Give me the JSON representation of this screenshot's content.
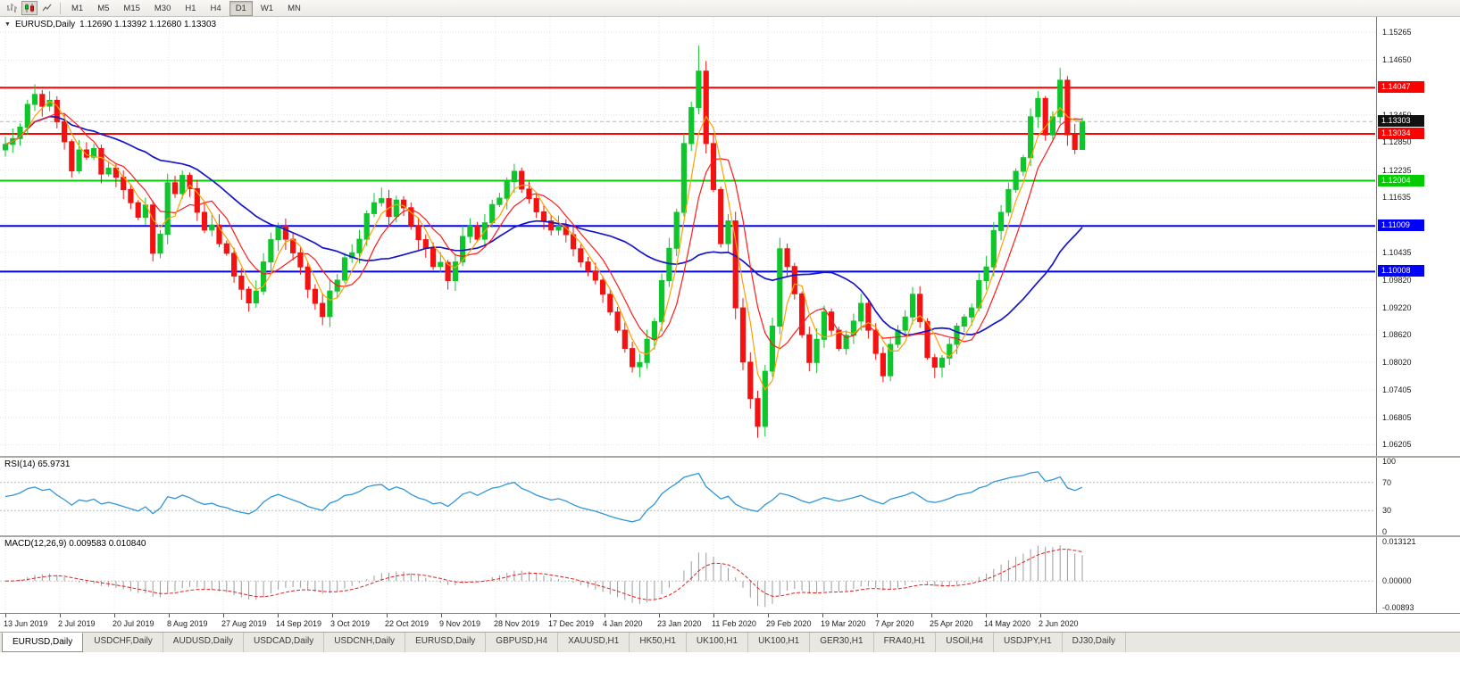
{
  "toolbar": {
    "timeframes": [
      "M1",
      "M5",
      "M15",
      "M30",
      "H1",
      "H4",
      "D1",
      "W1",
      "MN"
    ],
    "active_timeframe": "D1",
    "chart_type_icons": [
      "bar-chart-icon",
      "candlestick-chart-icon",
      "line-chart-icon"
    ],
    "active_chart_type": "candlestick-chart-icon"
  },
  "chart": {
    "symbol_label": "EURUSD,Daily",
    "ohlc_text": "1.12690 1.13392 1.12680 1.13303"
  },
  "chart_data": {
    "type": "candlestick",
    "symbol": "EURUSD",
    "timeframe": "Daily",
    "price_axis": {
      "top": 1.156,
      "bottom": 1.0596,
      "ticks": [
        1.15265,
        1.1465,
        1.1345,
        1.1285,
        1.12235,
        1.11635,
        1.10435,
        1.0982,
        1.0922,
        1.0862,
        1.0802,
        1.07405,
        1.06805,
        1.06205
      ]
    },
    "levels": [
      {
        "price": 1.14047,
        "label": "1.14047",
        "color": "#ff0000"
      },
      {
        "price": 1.13034,
        "label": "1.13034",
        "color": "#ff0000"
      },
      {
        "price": 1.12004,
        "label": "1.12004",
        "color": "#00cc00"
      },
      {
        "price": 1.11009,
        "label": "1.11009",
        "color": "#0000ff"
      },
      {
        "price": 1.10008,
        "label": "1.10008",
        "color": "#0000ff"
      }
    ],
    "current_price": {
      "value": 1.13303,
      "label": "1.13303",
      "box_color": "#111111"
    },
    "closes": [
      1.128,
      1.1293,
      1.1318,
      1.1368,
      1.139,
      1.1364,
      1.1377,
      1.133,
      1.1286,
      1.1222,
      1.1268,
      1.1252,
      1.1271,
      1.1215,
      1.1228,
      1.1208,
      1.1181,
      1.1152,
      1.112,
      1.1147,
      1.1041,
      1.1083,
      1.1196,
      1.1172,
      1.1212,
      1.1183,
      1.1131,
      1.1092,
      1.1103,
      1.1062,
      1.1041,
      1.0991,
      1.0962,
      1.0932,
      1.0958,
      1.1022,
      1.1071,
      1.1101,
      1.1072,
      1.1042,
      1.1011,
      1.0962,
      1.0931,
      1.0902,
      1.0958,
      1.0982,
      1.1031,
      1.1042,
      1.1072,
      1.1128,
      1.1152,
      1.1161,
      1.1122,
      1.1158,
      1.1141,
      1.1102,
      1.1071,
      1.1052,
      1.1012,
      1.1021,
      1.0981,
      1.1022,
      1.1078,
      1.1101,
      1.1072,
      1.1108,
      1.1148,
      1.1162,
      1.1198,
      1.1221,
      1.1182,
      1.1161,
      1.1132,
      1.1112,
      1.1092,
      1.1101,
      1.1082,
      1.1051,
      1.1022,
      1.1002,
      1.0982,
      1.0951,
      1.0912,
      1.0872,
      1.0832,
      1.0792,
      1.0801,
      1.0852,
      1.0891,
      1.0981,
      1.1052,
      1.1131,
      1.1282,
      1.1361,
      1.1441,
      1.1282,
      1.1181,
      1.1062,
      1.1112,
      1.0921,
      1.0802,
      1.0722,
      1.0661,
      1.0782,
      1.0881,
      1.1051,
      1.1012,
      1.0952,
      1.0862,
      1.0801,
      1.0852,
      1.0912,
      1.0872,
      1.0832,
      1.0861,
      1.0892,
      1.0931,
      1.0872,
      1.0821,
      1.0772,
      1.0841,
      1.0872,
      1.0901,
      1.0951,
      1.0891,
      1.0812,
      1.0791,
      1.0811,
      1.0841,
      1.0881,
      1.0901,
      1.0921,
      1.0981,
      1.1011,
      1.1091,
      1.1131,
      1.1181,
      1.1221,
      1.1251,
      1.1341,
      1.1381,
      1.1301,
      1.1341,
      1.1421,
      1.1301,
      1.1269,
      1.13303
    ],
    "wick_overrides": [
      {
        "i": 4,
        "high": 1.1412
      },
      {
        "i": 94,
        "high": 1.1497
      },
      {
        "i": 102,
        "low": 1.0636
      },
      {
        "i": 143,
        "high": 1.1448
      },
      {
        "i": 146,
        "high": 1.1339,
        "low": 1.1268
      }
    ],
    "date_labels": [
      "13 Jun 2019",
      "2 Jul 2019",
      "20 Jul 2019",
      "8 Aug 2019",
      "27 Aug 2019",
      "14 Sep 2019",
      "3 Oct 2019",
      "22 Oct 2019",
      "9 Nov 2019",
      "28 Nov 2019",
      "17 Dec 2019",
      "4 Jan 2020",
      "23 Jan 2020",
      "11 Feb 2020",
      "29 Feb 2020",
      "19 Mar 2020",
      "7 Apr 2020",
      "25 Apr 2020",
      "14 May 2020",
      "2 Jun 2020"
    ],
    "colors": {
      "bull": "#0fc52c",
      "bear": "#f21212",
      "ma_fast": "#ffa000",
      "ma_mid": "#ff1a1a",
      "ma_slow": "#1616c8",
      "grid": "#e4e4e4",
      "bid_line": "#b6b6b6"
    }
  },
  "rsi": {
    "label": "RSI(14) 65.9731",
    "value": 65.9731,
    "axis_levels": [
      100,
      70,
      30,
      0
    ],
    "upper_level": 70,
    "lower_level": 30,
    "line_color": "#2f96dc",
    "level_line_color": "#b8b8b8"
  },
  "macd": {
    "label": "MACD(12,26,9) 0.009583 0.010840",
    "main_value": 0.009583,
    "signal_value": 0.01084,
    "range": {
      "max": 0.0135,
      "min": -0.0095
    },
    "axis_values": [
      {
        "v": 0.013121,
        "label": "0.013121"
      },
      {
        "v": 0,
        "label": "0.00000"
      },
      {
        "v": -0.00893,
        "label": "-0.00893"
      }
    ],
    "histogram_color": "#9b9b9b",
    "signal_color": "#e02020",
    "zero_line_color": "#c8c8c8"
  },
  "tabs": {
    "active_index": 0,
    "items": [
      "EURUSD,Daily",
      "USDCHF,Daily",
      "AUDUSD,Daily",
      "USDCAD,Daily",
      "USDCNH,Daily",
      "EURUSD,Daily",
      "GBPUSD,H4",
      "XAUUSD,H1",
      "HK50,H1",
      "UK100,H1",
      "UK100,H1",
      "GER30,H1",
      "FRA40,H1",
      "USOil,H4",
      "USDJPY,H1",
      "DJ30,Daily"
    ]
  }
}
